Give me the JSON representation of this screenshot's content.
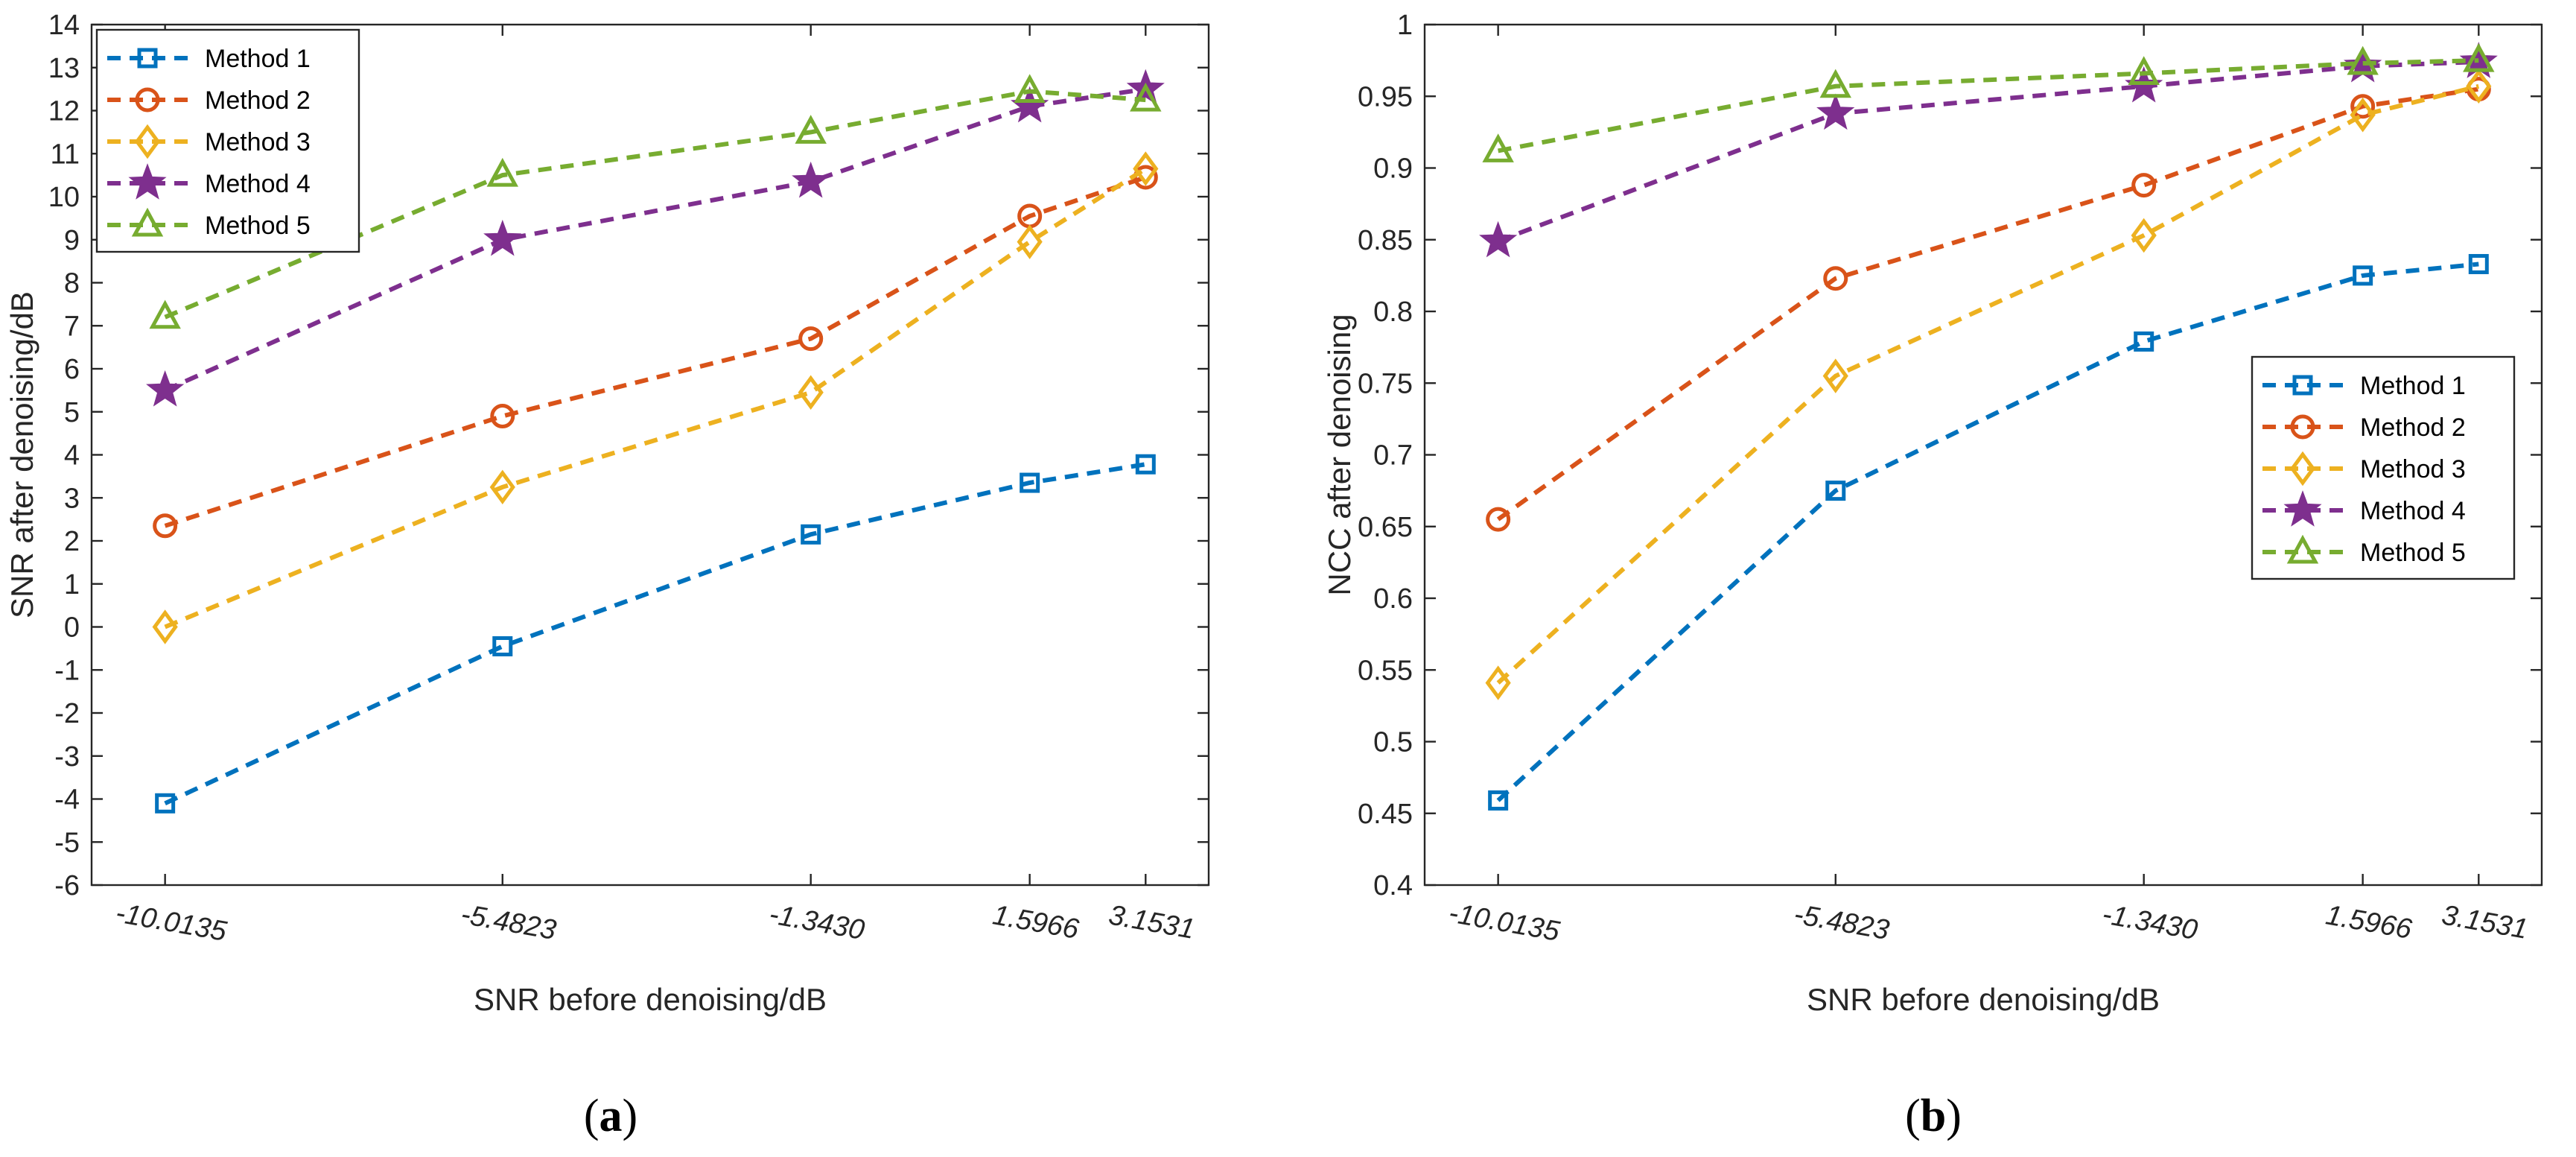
{
  "chart_data": [
    {
      "type": "line",
      "panel_label": "a",
      "xlabel": "SNR before denoising/dB",
      "ylabel": "SNR after denoising/dB",
      "x": [
        -10.0135,
        -5.4823,
        -1.343,
        1.5966,
        3.1531
      ],
      "x_tick_labels": [
        "-10.0135",
        "-5.4823",
        "-1.3430",
        "1.5966",
        "3.1531"
      ],
      "xlim": [
        -11.0,
        4.0
      ],
      "ylim": [
        -6,
        14
      ],
      "yticks": [
        -6,
        -5,
        -4,
        -3,
        -2,
        -1,
        0,
        1,
        2,
        3,
        4,
        5,
        6,
        7,
        8,
        9,
        10,
        11,
        12,
        13,
        14
      ],
      "legend_position": "top-left",
      "series": [
        {
          "name": "Method 1",
          "color": "#0072BD",
          "marker": "square",
          "values": [
            -4.1,
            -0.45,
            2.15,
            3.35,
            3.78
          ]
        },
        {
          "name": "Method 2",
          "color": "#D95319",
          "marker": "circle",
          "values": [
            2.35,
            4.9,
            6.7,
            9.55,
            10.45
          ]
        },
        {
          "name": "Method 3",
          "color": "#EDB120",
          "marker": "diamond",
          "values": [
            0.0,
            3.25,
            5.45,
            8.95,
            10.65
          ]
        },
        {
          "name": "Method 4",
          "color": "#7E2F8E",
          "marker": "star",
          "values": [
            5.5,
            9.0,
            10.35,
            12.1,
            12.5
          ]
        },
        {
          "name": "Method 5",
          "color": "#77AC30",
          "marker": "triangle",
          "values": [
            7.2,
            10.5,
            11.5,
            12.45,
            12.25
          ]
        }
      ]
    },
    {
      "type": "line",
      "panel_label": "b",
      "xlabel": "SNR before denoising/dB",
      "ylabel": "NCC after denoising",
      "x": [
        -10.0135,
        -5.4823,
        -1.343,
        1.5966,
        3.1531
      ],
      "x_tick_labels": [
        "-10.0135",
        "-5.4823",
        "-1.3430",
        "1.5966",
        "3.1531"
      ],
      "xlim": [
        -11.0,
        4.0
      ],
      "ylim": [
        0.4,
        1.0
      ],
      "yticks": [
        0.4,
        0.45,
        0.5,
        0.55,
        0.6,
        0.65,
        0.7,
        0.75,
        0.8,
        0.85,
        0.9,
        0.95,
        1.0
      ],
      "ytick_labels": [
        "0.4",
        "0.45",
        "0.5",
        "0.55",
        "0.6",
        "0.65",
        "0.7",
        "0.75",
        "0.8",
        "0.85",
        "0.9",
        "0.95",
        "1"
      ],
      "legend_position": "right",
      "series": [
        {
          "name": "Method 1",
          "color": "#0072BD",
          "marker": "square",
          "values": [
            0.459,
            0.675,
            0.779,
            0.825,
            0.833
          ]
        },
        {
          "name": "Method 2",
          "color": "#D95319",
          "marker": "circle",
          "values": [
            0.655,
            0.823,
            0.888,
            0.943,
            0.955
          ]
        },
        {
          "name": "Method 3",
          "color": "#EDB120",
          "marker": "diamond",
          "values": [
            0.541,
            0.755,
            0.853,
            0.937,
            0.957
          ]
        },
        {
          "name": "Method 4",
          "color": "#7E2F8E",
          "marker": "star",
          "values": [
            0.849,
            0.938,
            0.957,
            0.971,
            0.974
          ]
        },
        {
          "name": "Method 5",
          "color": "#77AC30",
          "marker": "triangle",
          "values": [
            0.912,
            0.957,
            0.966,
            0.973,
            0.975
          ]
        }
      ]
    }
  ]
}
